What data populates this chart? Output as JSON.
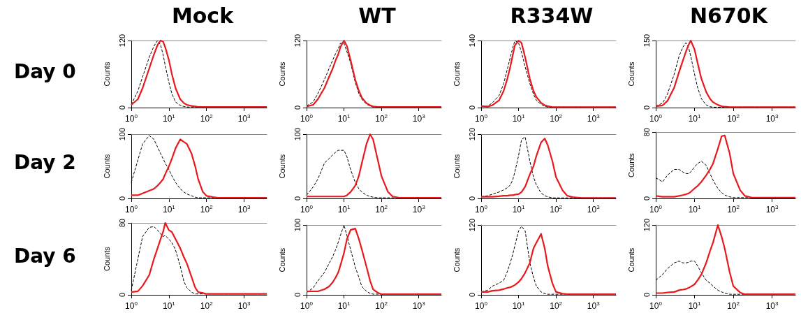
{
  "chart_data": [
    {
      "type": "line",
      "title": "Mock",
      "annotations": [
        "Day 0"
      ],
      "ylabel": "Counts",
      "log": "x",
      "x": [
        1,
        1.5,
        2,
        3,
        4,
        5,
        6,
        7,
        8,
        10,
        12,
        15,
        20,
        25,
        30,
        40,
        50,
        60,
        80,
        100,
        150,
        200,
        300,
        500,
        1000,
        2000,
        4000
      ],
      "xlim": [
        1,
        4000
      ],
      "xticks": [
        {
          "value": 1,
          "label": "10$^{0}$"
        },
        {
          "value": 10,
          "label": "10$^{1}$"
        },
        {
          "value": 100,
          "label": "10$^{2}$"
        },
        {
          "value": 1000,
          "label": "10$^{3}$"
        }
      ],
      "ylim": [
        0,
        120
      ],
      "yticks": [
        0,
        120
      ],
      "series": [
        {
          "color": "#000000",
          "line_style": "dashed",
          "values": [
            5,
            30,
            55,
            90,
            110,
            120,
            112,
            95,
            75,
            45,
            25,
            10,
            4,
            2,
            1,
            1,
            1,
            1,
            1,
            1,
            1,
            1,
            1,
            1,
            1,
            1,
            1
          ]
        },
        {
          "color": "#e8191c",
          "line_style": "solid",
          "values": [
            5,
            15,
            35,
            70,
            95,
            112,
            120,
            118,
            108,
            85,
            60,
            35,
            15,
            8,
            5,
            3,
            2,
            1,
            1,
            1,
            1,
            1,
            1,
            1,
            1,
            1,
            1
          ]
        }
      ]
    },
    {
      "type": "line",
      "title": "WT",
      "ylabel": "Counts",
      "log": "x",
      "x": [
        1,
        1.5,
        2,
        3,
        4,
        5,
        6,
        7,
        8,
        10,
        12,
        15,
        20,
        25,
        30,
        40,
        50,
        60,
        80,
        100,
        150,
        200,
        300,
        500,
        1000,
        2000,
        4000
      ],
      "xlim": [
        1,
        4000
      ],
      "xticks": [
        {
          "value": 1,
          "label": "10$^{0}$"
        },
        {
          "value": 10,
          "label": "10$^{1}$"
        },
        {
          "value": 100,
          "label": "10$^{2}$"
        },
        {
          "value": 1000,
          "label": "10$^{3}$"
        }
      ],
      "ylim": [
        0,
        120
      ],
      "yticks": [
        0,
        120
      ],
      "series": [
        {
          "color": "#000000",
          "line_style": "dashed",
          "values": [
            3,
            10,
            25,
            50,
            70,
            85,
            97,
            105,
            115,
            115,
            100,
            80,
            45,
            25,
            15,
            6,
            3,
            1,
            1,
            1,
            1,
            1,
            1,
            1,
            1,
            1,
            1
          ]
        },
        {
          "color": "#e8191c",
          "line_style": "solid",
          "values": [
            2,
            5,
            15,
            35,
            55,
            70,
            85,
            95,
            108,
            120,
            110,
            85,
            50,
            30,
            18,
            8,
            4,
            2,
            1,
            1,
            1,
            1,
            1,
            1,
            1,
            1,
            1
          ]
        }
      ]
    },
    {
      "type": "line",
      "title": "R334W",
      "ylabel": "Counts",
      "log": "x",
      "x": [
        1,
        1.5,
        2,
        3,
        4,
        5,
        6,
        7,
        8,
        10,
        12,
        15,
        20,
        25,
        30,
        40,
        50,
        60,
        80,
        100,
        150,
        200,
        300,
        500,
        1000,
        2000,
        4000
      ],
      "xlim": [
        1,
        4000
      ],
      "xticks": [
        {
          "value": 1,
          "label": "10$^{0}$"
        },
        {
          "value": 10,
          "label": "10$^{1}$"
        },
        {
          "value": 100,
          "label": "10$^{2}$"
        },
        {
          "value": 1000,
          "label": "10$^{3}$"
        }
      ],
      "ylim": [
        0,
        140
      ],
      "yticks": [
        0,
        140
      ],
      "series": [
        {
          "color": "#000000",
          "line_style": "dashed",
          "values": [
            2,
            3,
            10,
            25,
            50,
            80,
            105,
            125,
            140,
            135,
            115,
            85,
            50,
            28,
            15,
            7,
            3,
            1,
            1,
            1,
            1,
            1,
            1,
            1,
            1,
            1,
            1
          ]
        },
        {
          "color": "#e8191c",
          "line_style": "solid",
          "values": [
            3,
            2,
            5,
            15,
            35,
            60,
            85,
            110,
            130,
            140,
            135,
            105,
            60,
            35,
            22,
            10,
            5,
            3,
            1,
            1,
            1,
            1,
            1,
            1,
            1,
            1,
            1
          ]
        }
      ]
    },
    {
      "type": "line",
      "title": "N670K",
      "ylabel": "Counts",
      "log": "x",
      "x": [
        1,
        1.5,
        2,
        3,
        4,
        5,
        6,
        7,
        8,
        10,
        12,
        15,
        20,
        25,
        30,
        40,
        50,
        60,
        80,
        100,
        150,
        200,
        300,
        500,
        1000,
        2000,
        4000
      ],
      "xlim": [
        1,
        4000
      ],
      "xticks": [
        {
          "value": 1,
          "label": "10$^{0}$"
        },
        {
          "value": 10,
          "label": "10$^{1}$"
        },
        {
          "value": 100,
          "label": "10$^{2}$"
        },
        {
          "value": 1000,
          "label": "10$^{3}$"
        }
      ],
      "ylim": [
        0,
        150
      ],
      "yticks": [
        0,
        150
      ],
      "series": [
        {
          "color": "#000000",
          "line_style": "dashed",
          "values": [
            3,
            10,
            30,
            75,
            115,
            135,
            145,
            135,
            115,
            75,
            45,
            20,
            6,
            2,
            1,
            1,
            1,
            1,
            1,
            1,
            1,
            1,
            1,
            1,
            1,
            1,
            1
          ]
        },
        {
          "color": "#e8191c",
          "line_style": "solid",
          "values": [
            3,
            5,
            15,
            45,
            80,
            105,
            125,
            140,
            150,
            130,
            100,
            65,
            35,
            20,
            12,
            6,
            3,
            2,
            1,
            1,
            1,
            1,
            1,
            1,
            1,
            1,
            1
          ]
        }
      ]
    },
    {
      "type": "line",
      "annotations": [
        "Day 2"
      ],
      "ylabel": "Counts",
      "log": "x",
      "x": [
        1,
        1.5,
        2,
        3,
        4,
        5,
        6,
        7,
        8,
        10,
        12,
        15,
        20,
        25,
        30,
        40,
        50,
        60,
        80,
        100,
        150,
        200,
        300,
        500,
        1000,
        2000,
        4000
      ],
      "xlim": [
        1,
        4000
      ],
      "xticks": [
        {
          "value": 1,
          "label": "10$^{0}$"
        },
        {
          "value": 10,
          "label": "10$^{1}$"
        },
        {
          "value": 100,
          "label": "10$^{2}$"
        },
        {
          "value": 1000,
          "label": "10$^{3}$"
        }
      ],
      "ylim": [
        0,
        100
      ],
      "yticks": [
        0,
        100
      ],
      "series": [
        {
          "color": "#000000",
          "line_style": "dashed",
          "values": [
            25,
            60,
            85,
            98,
            92,
            80,
            70,
            62,
            55,
            45,
            35,
            25,
            15,
            10,
            7,
            4,
            2,
            1,
            1,
            1,
            1,
            1,
            1,
            1,
            1,
            1,
            1
          ]
        },
        {
          "color": "#e8191c",
          "line_style": "solid",
          "values": [
            5,
            5,
            8,
            12,
            15,
            20,
            25,
            30,
            38,
            50,
            62,
            78,
            92,
            88,
            85,
            70,
            50,
            30,
            10,
            4,
            2,
            1,
            1,
            1,
            1,
            1,
            1
          ]
        }
      ]
    },
    {
      "type": "line",
      "ylabel": "Counts",
      "log": "x",
      "x": [
        1,
        1.5,
        2,
        3,
        4,
        5,
        6,
        7,
        8,
        10,
        12,
        15,
        20,
        25,
        30,
        40,
        50,
        60,
        80,
        100,
        150,
        200,
        300,
        500,
        1000,
        2000,
        4000
      ],
      "xlim": [
        1,
        4000
      ],
      "xticks": [
        {
          "value": 1,
          "label": "10$^{0}$"
        },
        {
          "value": 10,
          "label": "10$^{1}$"
        },
        {
          "value": 100,
          "label": "10$^{2}$"
        },
        {
          "value": 1000,
          "label": "10$^{3}$"
        }
      ],
      "ylim": [
        0,
        100
      ],
      "yticks": [
        0,
        100
      ],
      "series": [
        {
          "color": "#000000",
          "line_style": "dashed",
          "values": [
            5,
            18,
            30,
            55,
            62,
            68,
            72,
            75,
            75,
            75,
            65,
            45,
            25,
            15,
            10,
            5,
            3,
            2,
            1,
            1,
            1,
            1,
            1,
            1,
            1,
            1,
            1
          ]
        },
        {
          "color": "#e8191c",
          "line_style": "solid",
          "values": [
            3,
            3,
            3,
            3,
            3,
            3,
            3,
            3,
            3,
            3,
            5,
            10,
            20,
            35,
            55,
            85,
            100,
            92,
            60,
            35,
            10,
            3,
            1,
            1,
            1,
            1,
            1
          ]
        }
      ]
    },
    {
      "type": "line",
      "ylabel": "Counts",
      "log": "x",
      "x": [
        1,
        1.5,
        2,
        3,
        4,
        5,
        6,
        7,
        8,
        10,
        12,
        15,
        20,
        25,
        30,
        40,
        50,
        60,
        80,
        100,
        150,
        200,
        300,
        500,
        1000,
        2000,
        4000
      ],
      "xlim": [
        1,
        4000
      ],
      "xticks": [
        {
          "value": 1,
          "label": "10$^{0}$"
        },
        {
          "value": 10,
          "label": "10$^{1}$"
        },
        {
          "value": 100,
          "label": "10$^{2}$"
        },
        {
          "value": 1000,
          "label": "10$^{3}$"
        }
      ],
      "ylim": [
        0,
        120
      ],
      "yticks": [
        0,
        120
      ],
      "series": [
        {
          "color": "#000000",
          "line_style": "dashed",
          "values": [
            3,
            5,
            8,
            12,
            16,
            20,
            25,
            35,
            50,
            80,
            110,
            115,
            70,
            40,
            25,
            10,
            5,
            3,
            1,
            1,
            1,
            1,
            1,
            1,
            1,
            1,
            1
          ]
        },
        {
          "color": "#e8191c",
          "line_style": "solid",
          "values": [
            3,
            3,
            3,
            4,
            5,
            5,
            6,
            6,
            7,
            8,
            12,
            22,
            45,
            60,
            80,
            105,
            112,
            100,
            70,
            40,
            15,
            5,
            2,
            1,
            1,
            1,
            1
          ]
        }
      ]
    },
    {
      "type": "line",
      "ylabel": "Counts",
      "log": "x",
      "x": [
        1,
        1.5,
        2,
        3,
        4,
        5,
        6,
        7,
        8,
        10,
        12,
        15,
        20,
        25,
        30,
        40,
        50,
        60,
        80,
        100,
        150,
        200,
        300,
        500,
        1000,
        2000,
        4000
      ],
      "xlim": [
        1,
        4000
      ],
      "xticks": [
        {
          "value": 1,
          "label": "10$^{0}$"
        },
        {
          "value": 10,
          "label": "10$^{1}$"
        },
        {
          "value": 100,
          "label": "10$^{2}$"
        },
        {
          "value": 1000,
          "label": "10$^{3}$"
        }
      ],
      "ylim": [
        0,
        80
      ],
      "yticks": [
        0,
        80
      ],
      "series": [
        {
          "color": "#000000",
          "line_style": "dashed",
          "values": [
            25,
            20,
            28,
            35,
            35,
            32,
            30,
            30,
            32,
            38,
            42,
            45,
            40,
            30,
            22,
            12,
            7,
            4,
            2,
            1,
            1,
            1,
            1,
            1,
            1,
            1,
            1
          ]
        },
        {
          "color": "#e8191c",
          "line_style": "solid",
          "values": [
            3,
            2,
            2,
            2,
            3,
            4,
            5,
            6,
            8,
            12,
            15,
            20,
            28,
            35,
            42,
            60,
            75,
            76,
            55,
            30,
            10,
            3,
            1,
            1,
            1,
            1,
            1
          ]
        }
      ]
    },
    {
      "type": "line",
      "annotations": [
        "Day 6"
      ],
      "ylabel": "Counts",
      "log": "x",
      "x": [
        1,
        1.5,
        2,
        3,
        4,
        5,
        6,
        7,
        8,
        10,
        12,
        15,
        20,
        25,
        30,
        40,
        50,
        60,
        80,
        100,
        150,
        200,
        300,
        500,
        1000,
        2000,
        4000
      ],
      "xlim": [
        1,
        4000
      ],
      "xticks": [
        {
          "value": 1,
          "label": "10$^{0}$"
        },
        {
          "value": 10,
          "label": "10$^{1}$"
        },
        {
          "value": 100,
          "label": "10$^{2}$"
        },
        {
          "value": 1000,
          "label": "10$^{3}$"
        }
      ],
      "ylim": [
        0,
        80
      ],
      "yticks": [
        0,
        80
      ],
      "series": [
        {
          "color": "#000000",
          "line_style": "dashed",
          "values": [
            5,
            40,
            65,
            75,
            76,
            72,
            68,
            65,
            66,
            62,
            58,
            50,
            32,
            15,
            8,
            3,
            1,
            1,
            1,
            1,
            1,
            1,
            1,
            1,
            1,
            1,
            1
          ]
        },
        {
          "color": "#e8191c",
          "line_style": "solid",
          "values": [
            3,
            4,
            10,
            22,
            40,
            52,
            62,
            70,
            80,
            72,
            70,
            62,
            52,
            42,
            35,
            20,
            8,
            3,
            2,
            1,
            1,
            1,
            1,
            1,
            1,
            1,
            1
          ]
        }
      ]
    },
    {
      "type": "line",
      "ylabel": "Counts",
      "log": "x",
      "x": [
        1,
        1.5,
        2,
        3,
        4,
        5,
        6,
        7,
        8,
        10,
        12,
        15,
        20,
        25,
        30,
        40,
        50,
        60,
        80,
        100,
        150,
        200,
        300,
        500,
        1000,
        2000,
        4000
      ],
      "xlim": [
        1,
        4000
      ],
      "xticks": [
        {
          "value": 1,
          "label": "10$^{0}$"
        },
        {
          "value": 10,
          "label": "10$^{1}$"
        },
        {
          "value": 100,
          "label": "10$^{2}$"
        },
        {
          "value": 1000,
          "label": "10$^{3}$"
        }
      ],
      "ylim": [
        0,
        100
      ],
      "yticks": [
        0,
        100
      ],
      "series": [
        {
          "color": "#000000",
          "line_style": "dashed",
          "values": [
            3,
            10,
            20,
            32,
            45,
            55,
            65,
            75,
            85,
            100,
            85,
            65,
            40,
            25,
            12,
            5,
            2,
            1,
            1,
            1,
            1,
            1,
            1,
            1,
            1,
            1,
            1
          ]
        },
        {
          "color": "#e8191c",
          "line_style": "solid",
          "values": [
            5,
            5,
            5,
            8,
            12,
            18,
            25,
            32,
            42,
            60,
            80,
            93,
            95,
            80,
            65,
            40,
            20,
            8,
            3,
            1,
            1,
            1,
            1,
            1,
            1,
            1,
            1
          ]
        }
      ]
    },
    {
      "type": "line",
      "ylabel": "Counts",
      "log": "x",
      "x": [
        1,
        1.5,
        2,
        3,
        4,
        5,
        6,
        7,
        8,
        10,
        12,
        15,
        20,
        25,
        30,
        40,
        50,
        60,
        80,
        100,
        150,
        200,
        300,
        500,
        1000,
        2000,
        4000
      ],
      "xlim": [
        1,
        4000
      ],
      "xticks": [
        {
          "value": 1,
          "label": "10$^{0}$"
        },
        {
          "value": 10,
          "label": "10$^{1}$"
        },
        {
          "value": 100,
          "label": "10$^{2}$"
        },
        {
          "value": 1000,
          "label": "10$^{3}$"
        }
      ],
      "ylim": [
        0,
        120
      ],
      "yticks": [
        0,
        120
      ],
      "series": [
        {
          "color": "#000000",
          "line_style": "dashed",
          "values": [
            5,
            8,
            15,
            20,
            25,
            40,
            55,
            70,
            85,
            110,
            118,
            110,
            55,
            30,
            15,
            5,
            2,
            1,
            1,
            1,
            1,
            1,
            1,
            1,
            1,
            1,
            1
          ]
        },
        {
          "color": "#e8191c",
          "line_style": "solid",
          "values": [
            5,
            5,
            7,
            8,
            10,
            12,
            13,
            15,
            17,
            22,
            28,
            38,
            55,
            80,
            90,
            105,
            80,
            50,
            20,
            5,
            2,
            1,
            1,
            1,
            1,
            1,
            1
          ]
        }
      ]
    },
    {
      "type": "line",
      "ylabel": "Counts",
      "log": "x",
      "x": [
        1,
        1.5,
        2,
        3,
        4,
        5,
        6,
        7,
        8,
        10,
        12,
        15,
        20,
        25,
        30,
        40,
        50,
        60,
        80,
        100,
        150,
        200,
        300,
        500,
        1000,
        2000,
        4000
      ],
      "xlim": [
        1,
        4000
      ],
      "xticks": [
        {
          "value": 1,
          "label": "10$^{0}$"
        },
        {
          "value": 10,
          "label": "10$^{1}$"
        },
        {
          "value": 100,
          "label": "10$^{2}$"
        },
        {
          "value": 1000,
          "label": "10$^{3}$"
        }
      ],
      "ylim": [
        0,
        120
      ],
      "yticks": [
        0,
        120
      ],
      "series": [
        {
          "color": "#000000",
          "line_style": "dashed",
          "values": [
            25,
            35,
            45,
            55,
            58,
            55,
            55,
            56,
            58,
            58,
            50,
            38,
            25,
            20,
            15,
            8,
            5,
            3,
            1,
            1,
            1,
            1,
            1,
            1,
            1,
            1,
            1
          ]
        },
        {
          "color": "#e8191c",
          "line_style": "solid",
          "values": [
            3,
            3,
            4,
            5,
            8,
            9,
            10,
            12,
            14,
            18,
            25,
            35,
            55,
            75,
            90,
            120,
            100,
            80,
            40,
            15,
            4,
            1,
            1,
            1,
            1,
            1,
            1
          ]
        }
      ]
    }
  ]
}
